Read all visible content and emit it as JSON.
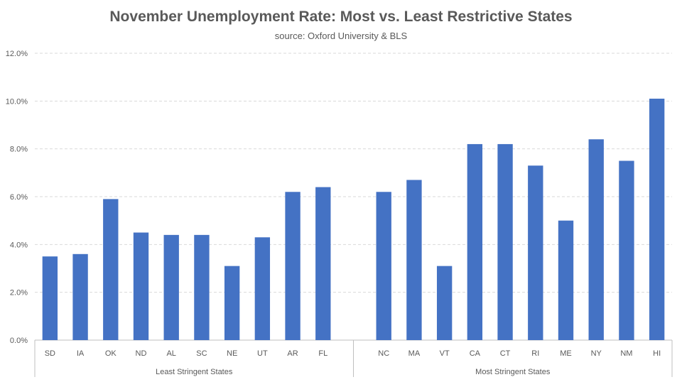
{
  "chart_data": {
    "type": "bar",
    "title": "November Unemployment Rate: Most vs. Least Restrictive States",
    "subtitle": "source: Oxford University & BLS",
    "ylim": [
      0,
      12
    ],
    "yticks": [
      "0.0%",
      "2.0%",
      "4.0%",
      "6.0%",
      "8.0%",
      "10.0%",
      "12.0%"
    ],
    "grid": true,
    "bar_color": "#4472C4",
    "groups": [
      {
        "label": "Least Stringent States",
        "categories": [
          "SD",
          "IA",
          "OK",
          "ND",
          "AL",
          "SC",
          "NE",
          "UT",
          "AR",
          "FL"
        ],
        "values": [
          3.5,
          3.6,
          5.9,
          4.5,
          4.4,
          4.4,
          3.1,
          4.3,
          6.2,
          6.4
        ]
      },
      {
        "label": "Most Stringent States",
        "categories": [
          "NC",
          "MA",
          "VT",
          "CA",
          "CT",
          "RI",
          "ME",
          "NY",
          "NM",
          "HI"
        ],
        "values": [
          6.2,
          6.7,
          3.1,
          8.2,
          8.2,
          7.3,
          5.0,
          8.4,
          7.5,
          10.1
        ]
      }
    ]
  }
}
